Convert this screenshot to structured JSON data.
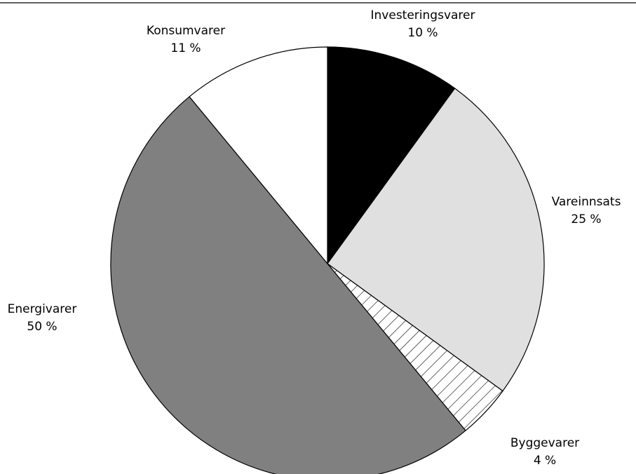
{
  "chart_data": {
    "type": "pie",
    "categories": [
      "Investeringsvarer",
      "Vareinnsats",
      "Byggevarer",
      "Energivarer",
      "Konsumvarer"
    ],
    "values": [
      10,
      25,
      4,
      50,
      11
    ],
    "value_labels": [
      "10 %",
      "25 %",
      "4 %",
      "50 %",
      "11 %"
    ],
    "colors": [
      "#000000",
      "#e0e0e0",
      "hatch",
      "#808080",
      "#ffffff"
    ]
  }
}
